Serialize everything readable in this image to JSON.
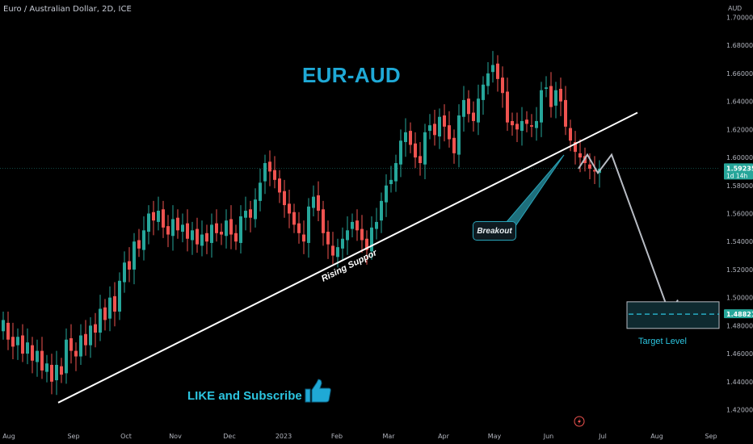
{
  "header": {
    "symbol_line": "Euro / Australian Dollar, 2D, ICE"
  },
  "annotations": {
    "title": "EUR-AUD",
    "breakout": "Breakout",
    "support_label": "Rising Suppor",
    "target_label": "Target Level",
    "like_text": "LIKE and Subscribe",
    "thumbs_icon": "thumbs-up-icon",
    "lightning_icon": "lightning-icon"
  },
  "price_axis": {
    "unit": "AUD",
    "current_price": "1.59235",
    "countdown": "1d 14h",
    "target_price": "1.48821"
  },
  "colors": {
    "up": "#26a69a",
    "down": "#ef5350",
    "accent": "#1fa9d6",
    "target_box": "#0f2a30",
    "projection": "#b8bcc4"
  },
  "chart_data": {
    "type": "candlestick",
    "ylim": [
      1.41,
      1.71
    ],
    "yticks": [
      1.42,
      1.44,
      1.46,
      1.48,
      1.5,
      1.52,
      1.54,
      1.56,
      1.58,
      1.6,
      1.62,
      1.64,
      1.66,
      1.68,
      1.7
    ],
    "ytick_labels": [
      "1.42000",
      "1.44000",
      "1.46000",
      "1.48000",
      "1.50000",
      "1.52000",
      "1.54000",
      "1.56000",
      "1.58000",
      "1.60000",
      "1.62000",
      "1.64000",
      "1.66000",
      "1.68000",
      "1.70000"
    ],
    "xlabels": [
      "Aug",
      "Sep",
      "Oct",
      "Nov",
      "Dec",
      "2023",
      "Feb",
      "Mar",
      "Apr",
      "May",
      "Jun",
      "Jul",
      "Aug",
      "Sep"
    ],
    "closes": [
      1.484,
      1.47,
      1.465,
      1.472,
      1.46,
      1.468,
      1.455,
      1.462,
      1.448,
      1.453,
      1.44,
      1.452,
      1.445,
      1.47,
      1.462,
      1.458,
      1.473,
      1.466,
      1.48,
      1.475,
      1.492,
      1.484,
      1.5,
      1.49,
      1.512,
      1.525,
      1.52,
      1.54,
      1.535,
      1.548,
      1.56,
      1.555,
      1.562,
      1.55,
      1.545,
      1.556,
      1.548,
      1.552,
      1.542,
      1.548,
      1.538,
      1.545,
      1.54,
      1.552,
      1.546,
      1.545,
      1.555,
      1.545,
      1.54,
      1.558,
      1.562,
      1.557,
      1.57,
      1.582,
      1.596,
      1.59,
      1.584,
      1.575,
      1.566,
      1.56,
      1.552,
      1.546,
      1.54,
      1.565,
      1.572,
      1.562,
      1.546,
      1.538,
      1.53,
      1.536,
      1.542,
      1.548,
      1.554,
      1.548,
      1.541,
      1.534,
      1.55,
      1.554,
      1.569,
      1.58,
      1.584,
      1.596,
      1.612,
      1.618,
      1.609,
      1.6,
      1.596,
      1.618,
      1.623,
      1.616,
      1.629,
      1.622,
      1.613,
      1.603,
      1.63,
      1.641,
      1.631,
      1.626,
      1.642,
      1.652,
      1.66,
      1.666,
      1.656,
      1.646,
      1.625,
      1.623,
      1.62,
      1.626,
      1.624,
      1.622,
      1.626,
      1.648,
      1.65,
      1.636,
      1.648,
      1.64,
      1.622,
      1.612,
      1.604,
      1.6,
      1.596,
      1.592,
      1.59,
      1.592
    ],
    "opens": [
      1.476,
      1.482,
      1.472,
      1.466,
      1.473,
      1.46,
      1.466,
      1.454,
      1.462,
      1.447,
      1.452,
      1.441,
      1.451,
      1.446,
      1.471,
      1.462,
      1.458,
      1.474,
      1.466,
      1.481,
      1.475,
      1.493,
      1.485,
      1.501,
      1.49,
      1.511,
      1.526,
      1.52,
      1.541,
      1.534,
      1.547,
      1.561,
      1.554,
      1.563,
      1.551,
      1.544,
      1.557,
      1.547,
      1.553,
      1.541,
      1.549,
      1.537,
      1.546,
      1.539,
      1.553,
      1.547,
      1.544,
      1.556,
      1.546,
      1.539,
      1.557,
      1.563,
      1.556,
      1.569,
      1.583,
      1.597,
      1.591,
      1.585,
      1.576,
      1.567,
      1.561,
      1.553,
      1.545,
      1.539,
      1.564,
      1.573,
      1.563,
      1.547,
      1.537,
      1.529,
      1.535,
      1.541,
      1.549,
      1.555,
      1.549,
      1.542,
      1.533,
      1.549,
      1.555,
      1.568,
      1.581,
      1.583,
      1.595,
      1.611,
      1.619,
      1.61,
      1.601,
      1.595,
      1.619,
      1.624,
      1.615,
      1.63,
      1.623,
      1.614,
      1.602,
      1.629,
      1.642,
      1.632,
      1.625,
      1.641,
      1.651,
      1.661,
      1.667,
      1.657,
      1.647,
      1.626,
      1.624,
      1.619,
      1.627,
      1.623,
      1.621,
      1.625,
      1.649,
      1.651,
      1.637,
      1.649,
      1.641,
      1.621,
      1.611,
      1.603,
      1.601,
      1.595,
      1.591,
      1.589
    ],
    "support_line": {
      "start": {
        "index": 10,
        "price": 1.425
      },
      "end": {
        "index": 127,
        "price": 1.632
      }
    },
    "projection": [
      1.592,
      1.602,
      1.589,
      1.602,
      1.488
    ],
    "target_zone": [
      1.478,
      1.497
    ],
    "target_level": 1.48821,
    "current_price": 1.59235
  }
}
